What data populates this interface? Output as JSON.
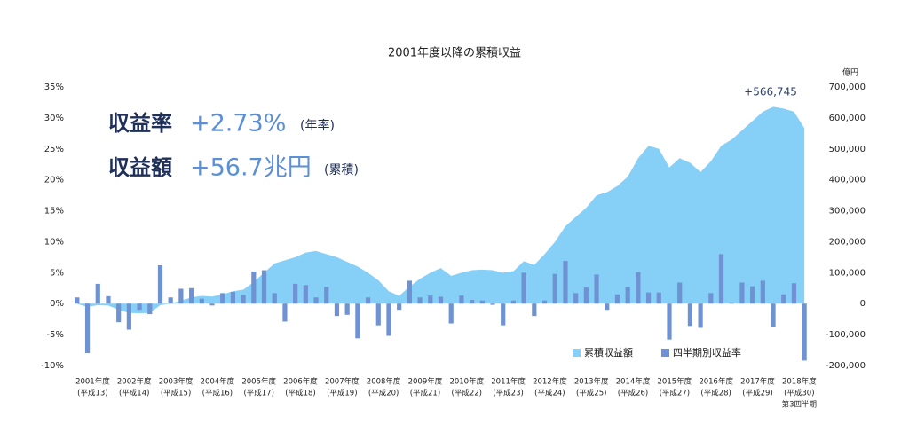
{
  "chart_data": {
    "type": "combo",
    "title": "2001年度以降の累積収益",
    "y2_unit": "億円",
    "annotation": "+566,745",
    "last_category_note": "第3四半期",
    "highlights": [
      {
        "label": "収益率",
        "value": "+2.73%",
        "note": "(年率)"
      },
      {
        "label": "収益額",
        "value": "+56.7兆円",
        "note": "(累積)"
      }
    ],
    "categories": [
      null,
      "2001年度",
      null,
      null,
      null,
      "2002年度",
      null,
      null,
      null,
      "2003年度",
      null,
      null,
      null,
      "2004年度",
      null,
      null,
      null,
      "2005年度",
      null,
      null,
      null,
      "2006年度",
      null,
      null,
      null,
      "2007年度",
      null,
      null,
      null,
      "2008年度",
      null,
      null,
      null,
      "2009年度",
      null,
      null,
      null,
      "2010年度",
      null,
      null,
      null,
      "2011年度",
      null,
      null,
      null,
      "2012年度",
      null,
      null,
      null,
      "2013年度",
      null,
      null,
      null,
      "2014年度",
      null,
      null,
      null,
      "2015年度",
      null,
      null,
      null,
      "2016年度",
      null,
      null,
      null,
      "2017年度",
      null,
      null,
      null,
      "2018年度",
      null
    ],
    "category_sublabels": [
      null,
      "(平成13)",
      null,
      null,
      null,
      "(平成14)",
      null,
      null,
      null,
      "(平成15)",
      null,
      null,
      null,
      "(平成16)",
      null,
      null,
      null,
      "(平成17)",
      null,
      null,
      null,
      "(平成18)",
      null,
      null,
      null,
      "(平成19)",
      null,
      null,
      null,
      "(平成20)",
      null,
      null,
      null,
      "(平成21)",
      null,
      null,
      null,
      "(平成22)",
      null,
      null,
      null,
      "(平成23)",
      null,
      null,
      null,
      "(平成24)",
      null,
      null,
      null,
      "(平成25)",
      null,
      null,
      null,
      "(平成26)",
      null,
      null,
      null,
      "(平成27)",
      null,
      null,
      null,
      "(平成28)",
      null,
      null,
      null,
      "(平成29)",
      null,
      null,
      null,
      "(平成30)",
      null
    ],
    "series": [
      {
        "name": "累積収益額",
        "type": "area",
        "axis": "y2",
        "color": "#86cff7",
        "values": [
          -1000,
          -10000,
          -5000,
          -6000,
          -20000,
          -30000,
          -31000,
          -30000,
          -5000,
          0,
          10000,
          20000,
          25000,
          23000,
          30000,
          40000,
          45000,
          70000,
          100000,
          130000,
          140000,
          150000,
          165000,
          170000,
          160000,
          150000,
          135000,
          120000,
          100000,
          75000,
          40000,
          25000,
          55000,
          80000,
          100000,
          115000,
          90000,
          100000,
          108000,
          110000,
          108000,
          100000,
          105000,
          137000,
          125000,
          160000,
          200000,
          250000,
          280000,
          310000,
          350000,
          360000,
          380000,
          410000,
          470000,
          510000,
          500000,
          440000,
          470000,
          455000,
          425000,
          460000,
          510000,
          530000,
          560000,
          590000,
          620000,
          636000,
          630000,
          620000,
          566745
        ]
      },
      {
        "name": "四半期別収益率",
        "type": "bar",
        "color": "#6f93d2",
        "values": [
          1.0,
          -8.0,
          3.2,
          1.2,
          -3.0,
          -4.2,
          -1.0,
          -1.7,
          6.2,
          1.0,
          2.4,
          2.5,
          0.8,
          -0.3,
          1.7,
          1.9,
          1.4,
          5.2,
          5.4,
          1.7,
          -2.9,
          3.2,
          3.0,
          1.0,
          2.7,
          -2.0,
          -1.8,
          -5.6,
          1.0,
          -3.5,
          -5.2,
          -1.0,
          3.7,
          1.0,
          1.3,
          1.1,
          -3.2,
          1.3,
          0.6,
          0.5,
          -0.2,
          -3.5,
          0.5,
          5.0,
          -2.0,
          0.5,
          4.8,
          6.9,
          1.7,
          2.6,
          4.7,
          -1.0,
          1.5,
          2.7,
          5.1,
          1.8,
          1.8,
          -5.8,
          3.4,
          -3.6,
          -3.9,
          1.7,
          8.0,
          0.2,
          3.4,
          2.8,
          3.7,
          -3.7,
          1.5,
          3.3,
          -9.2
        ]
      }
    ],
    "ylim": [
      -10,
      35
    ],
    "yticks": [
      {
        "value": -10,
        "label": "-10%"
      },
      {
        "value": -5,
        "label": "-5%"
      },
      {
        "value": 0,
        "label": "0%"
      },
      {
        "value": 5,
        "label": "5%"
      },
      {
        "value": 10,
        "label": "10%"
      },
      {
        "value": 15,
        "label": "15%"
      },
      {
        "value": 20,
        "label": "20%"
      },
      {
        "value": 25,
        "label": "25%"
      },
      {
        "value": 30,
        "label": "30%"
      },
      {
        "value": 35,
        "label": "35%"
      }
    ],
    "y2lim": [
      -200000,
      700000
    ],
    "y2ticks": [
      {
        "value": -200000,
        "label": "-200,000"
      },
      {
        "value": -100000,
        "label": "-100,000"
      },
      0,
      {
        "value": 100000,
        "label": "100,000"
      },
      {
        "value": 200000,
        "label": "200,000"
      },
      {
        "value": 300000,
        "label": "300,000"
      },
      {
        "value": 400000,
        "label": "400,000"
      },
      {
        "value": 500000,
        "label": "500,000"
      },
      {
        "value": 600000,
        "label": "600,000"
      },
      {
        "value": 700000,
        "label": "700,000"
      }
    ]
  }
}
